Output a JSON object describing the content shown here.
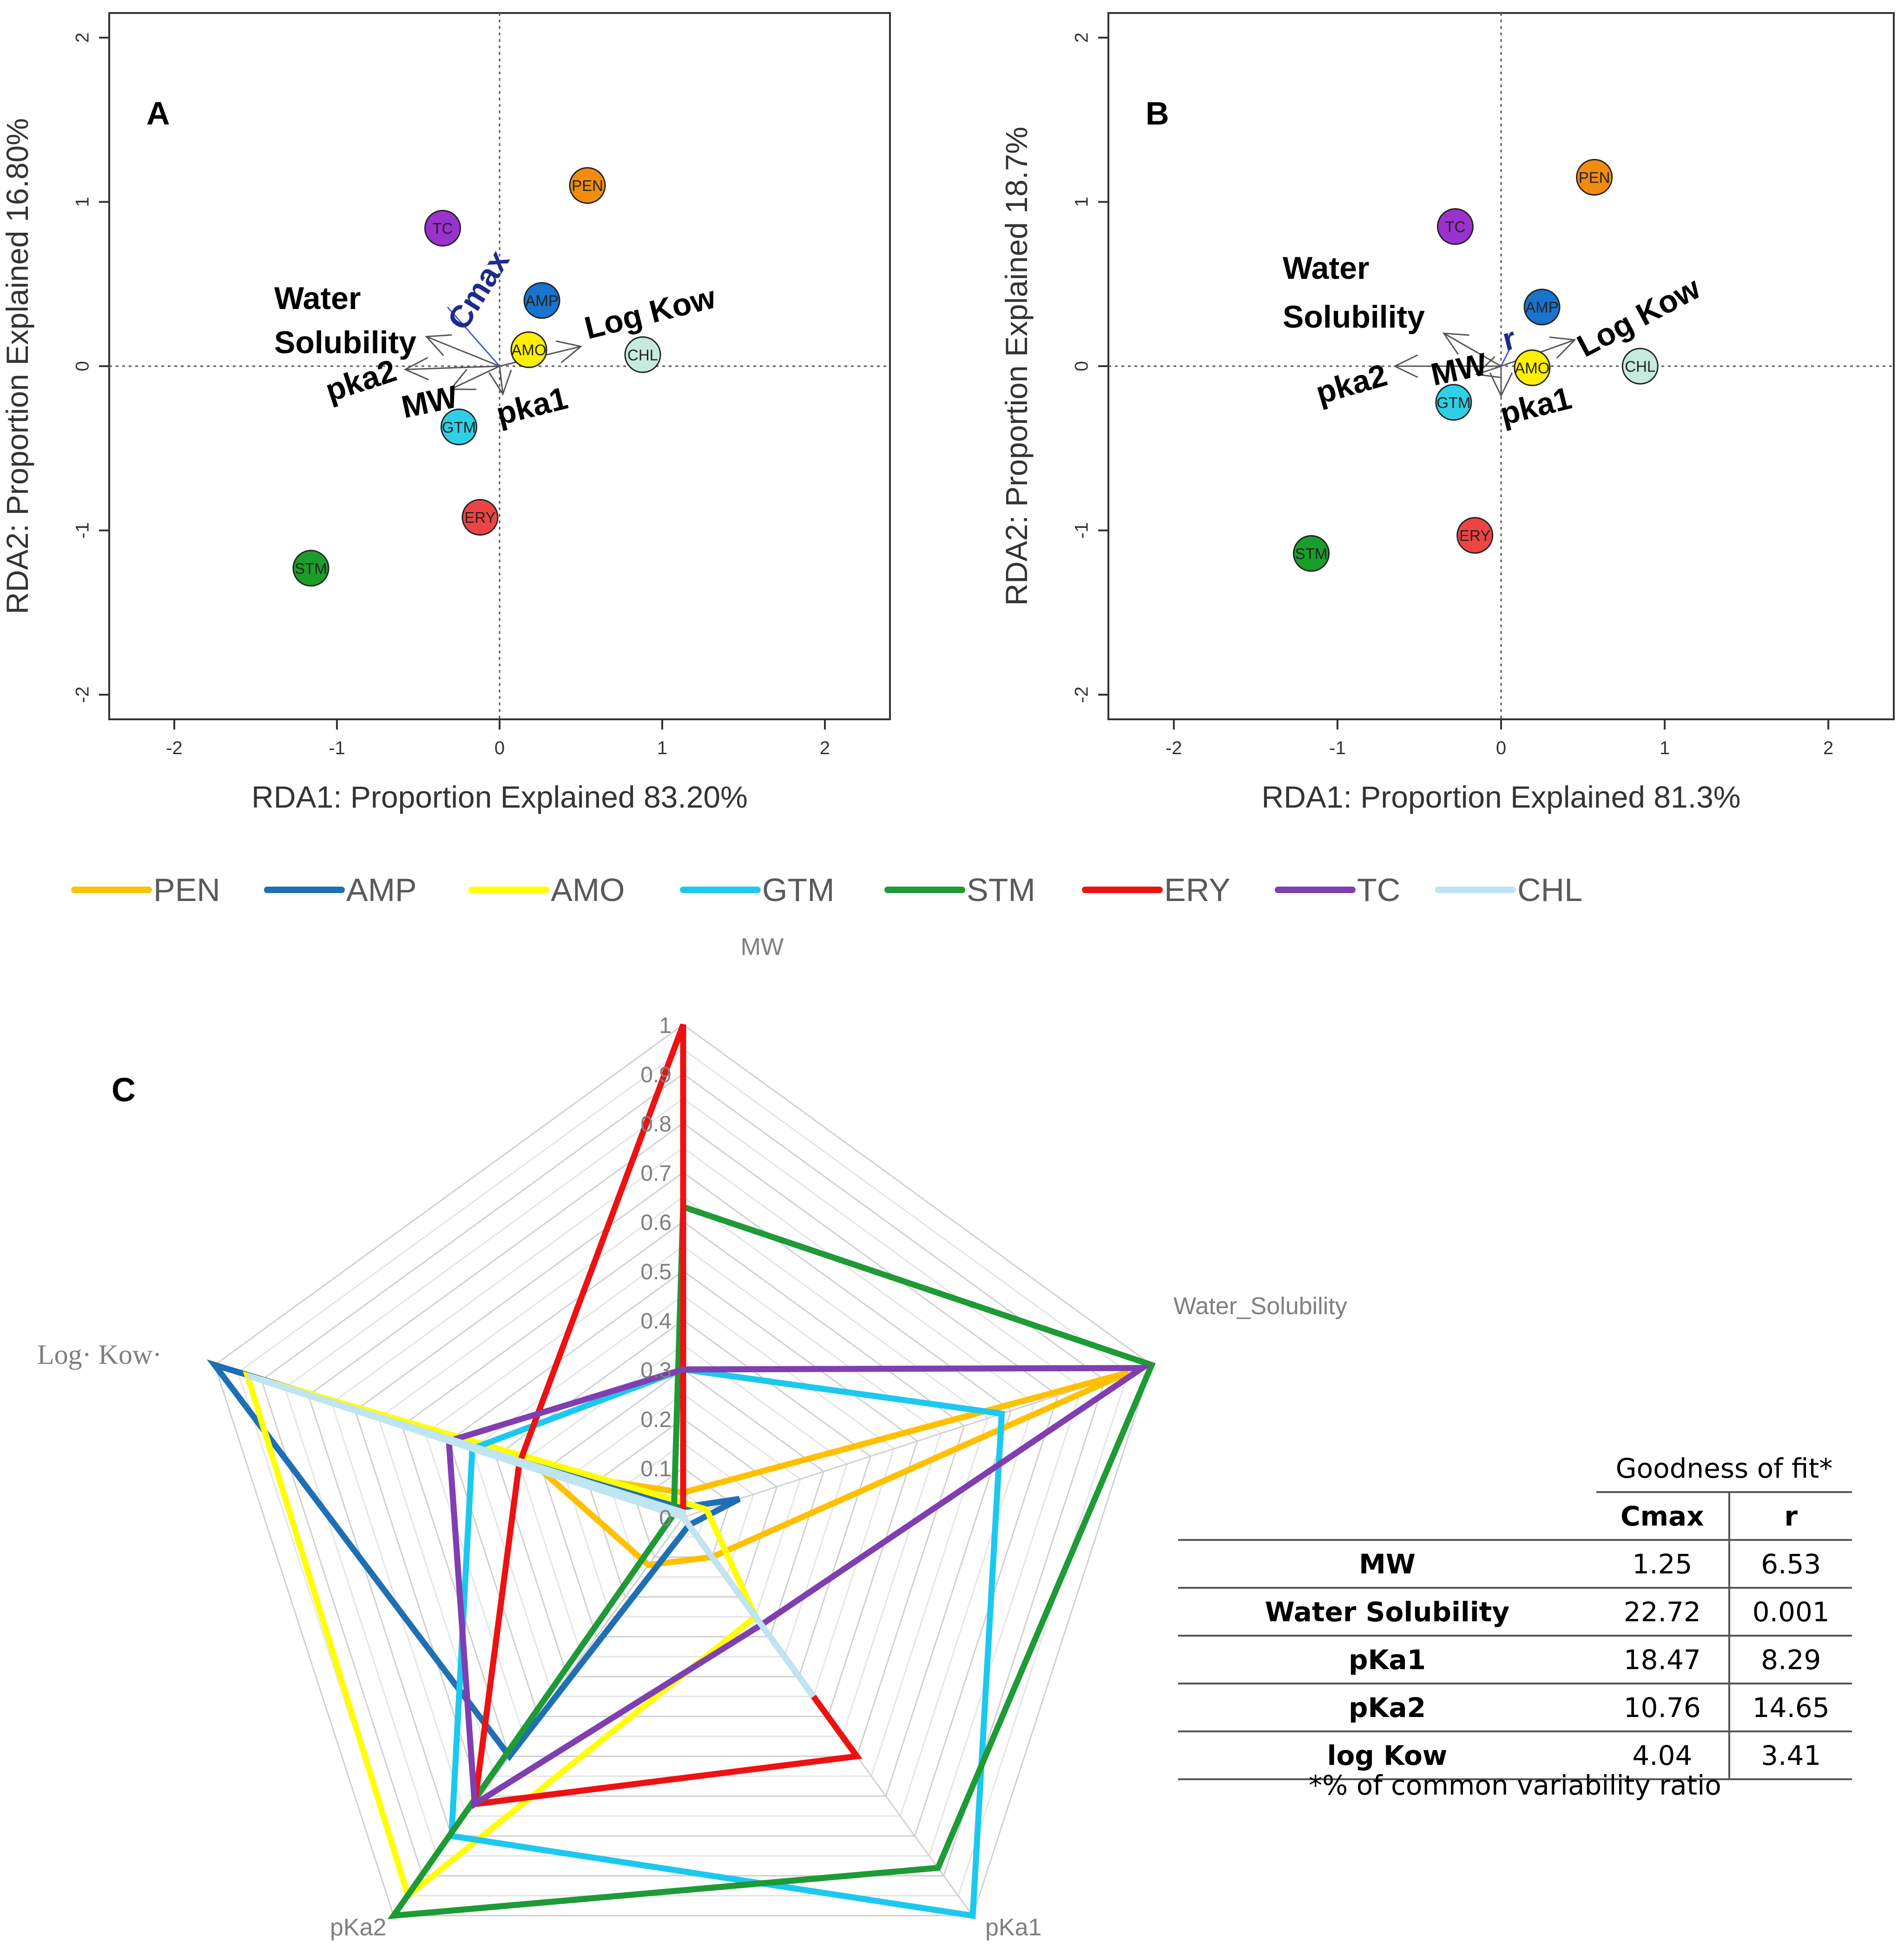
{
  "chart_data": [
    {
      "type": "scatter",
      "panel": "A",
      "xlabel": "RDA1: Proportion Explained 83.20%",
      "ylabel": "RDA2: Proportion Explained 16.80%",
      "xlim": [
        -2.4,
        2.4
      ],
      "ylim": [
        -2.15,
        2.15
      ],
      "xticks": [
        -2,
        -1,
        0,
        1,
        2
      ],
      "yticks": [
        -2,
        -1,
        0,
        1,
        2
      ],
      "tick_labels": [
        "-2",
        "-1",
        "0",
        "1",
        "2"
      ],
      "points": [
        {
          "label": "PEN",
          "x": 0.54,
          "y": 1.1,
          "color": "#F28C0F"
        },
        {
          "label": "TC",
          "x": -0.35,
          "y": 0.84,
          "color": "#9A32CD"
        },
        {
          "label": "AMP",
          "x": 0.26,
          "y": 0.4,
          "color": "#1874CD"
        },
        {
          "label": "AMO",
          "x": 0.18,
          "y": 0.1,
          "color": "#FFF000"
        },
        {
          "label": "CHL",
          "x": 0.88,
          "y": 0.07,
          "color": "#C7EADF"
        },
        {
          "label": "GTM",
          "x": -0.25,
          "y": -0.37,
          "color": "#2FD0E6"
        },
        {
          "label": "ERY",
          "x": -0.12,
          "y": -0.92,
          "color": "#EE4444"
        },
        {
          "label": "STM",
          "x": -1.16,
          "y": -1.23,
          "color": "#1A9E2A"
        }
      ],
      "vectors": [
        {
          "label": "Water Solubility",
          "line1": "Water",
          "line2": "Solubility",
          "x": -0.45,
          "y": 0.18
        },
        {
          "label": "pka2",
          "x": -0.58,
          "y": -0.02
        },
        {
          "label": "MW",
          "x": -0.3,
          "y": -0.14
        },
        {
          "label": "pka1",
          "x": 0.02,
          "y": -0.17
        },
        {
          "label": "Log Kow",
          "x": 0.5,
          "y": 0.12
        }
      ],
      "response": {
        "label": "Cmax",
        "x": -0.32,
        "y": 0.36,
        "color": "#1F2A8A"
      }
    },
    {
      "type": "scatter",
      "panel": "B",
      "xlabel": "RDA1: Proportion Explained 81.3%",
      "ylabel": "RDA2: Proportion Explained 18.7%",
      "xlim": [
        -2.4,
        2.4
      ],
      "ylim": [
        -2.15,
        2.15
      ],
      "xticks": [
        -2,
        -1,
        0,
        1,
        2
      ],
      "yticks": [
        -2,
        -1,
        0,
        1,
        2
      ],
      "tick_labels": [
        "-2",
        "-1",
        "0",
        "1",
        "2"
      ],
      "points": [
        {
          "label": "PEN",
          "x": 0.57,
          "y": 1.15,
          "color": "#F28C0F"
        },
        {
          "label": "TC",
          "x": -0.28,
          "y": 0.85,
          "color": "#9A32CD"
        },
        {
          "label": "AMP",
          "x": 0.25,
          "y": 0.36,
          "color": "#1874CD"
        },
        {
          "label": "AMO",
          "x": 0.19,
          "y": -0.01,
          "color": "#FFF000"
        },
        {
          "label": "CHL",
          "x": 0.85,
          "y": 0.0,
          "color": "#C7EADF"
        },
        {
          "label": "GTM",
          "x": -0.29,
          "y": -0.22,
          "color": "#2FD0E6"
        },
        {
          "label": "ERY",
          "x": -0.16,
          "y": -1.03,
          "color": "#EE4444"
        },
        {
          "label": "STM",
          "x": -1.16,
          "y": -1.14,
          "color": "#1A9E2A"
        }
      ],
      "vectors": [
        {
          "label": "Water Solubility",
          "line1": "Water",
          "line2": "Solubility",
          "x": -0.35,
          "y": 0.2
        },
        {
          "label": "pka2",
          "x": -0.65,
          "y": 0.0
        },
        {
          "label": "MW",
          "x": -0.15,
          "y": -0.05
        },
        {
          "label": "pka1",
          "x": 0.0,
          "y": -0.18
        },
        {
          "label": "Log Kow",
          "x": 0.45,
          "y": 0.16
        }
      ],
      "response": {
        "label": "r",
        "x": 0.05,
        "y": 0.1,
        "color": "#1F2A8A"
      }
    },
    {
      "type": "radar",
      "panel": "C",
      "axes": [
        "MW",
        "Water_Solubility",
        "pKa1",
        "pKa2",
        "Log· Kow·"
      ],
      "rlim": [
        0,
        1
      ],
      "ticks": [
        "0",
        "0.1",
        "0.2",
        "0.3",
        "0.4",
        "0.5",
        "0.6",
        "0.7",
        "0.8",
        "0.9",
        "1"
      ],
      "series": [
        {
          "name": "PEN",
          "color": "#FFC000",
          "values": [
            0.05,
            0.95,
            0.1,
            0.12,
            0.3
          ]
        },
        {
          "name": "AMP",
          "color": "#1F6FB4",
          "values": [
            0.02,
            0.12,
            0.02,
            0.6,
            1.0
          ]
        },
        {
          "name": "AMO",
          "color": "#FFFF00",
          "values": [
            0.03,
            0.05,
            0.25,
            0.95,
            0.93
          ]
        },
        {
          "name": "GTM",
          "color": "#1CC8EE",
          "values": [
            0.3,
            0.68,
            1.0,
            0.8,
            0.45
          ]
        },
        {
          "name": "STM",
          "color": "#1E9A36",
          "values": [
            0.63,
            1.0,
            0.88,
            1.0,
            0.02
          ]
        },
        {
          "name": "ERY",
          "color": "#EE1111",
          "values": [
            1.0,
            0.0,
            0.6,
            0.72,
            0.35
          ]
        },
        {
          "name": "TC",
          "color": "#7F3FB0",
          "values": [
            0.3,
            0.98,
            0.27,
            0.72,
            0.5
          ]
        },
        {
          "name": "CHL",
          "color": "#BFE4F2",
          "values": [
            0.01,
            0.0,
            0.45,
            0.0,
            0.93
          ]
        }
      ]
    }
  ],
  "panel_labels": {
    "a": "A",
    "b": "B",
    "c": "C"
  },
  "table": {
    "caption": "Goodness of fit*",
    "col1": "Cmax",
    "col2": "r",
    "rows": [
      {
        "label": "MW",
        "cmax": "1.25",
        "r": "6.53"
      },
      {
        "label": "Water Solubility",
        "cmax": "22.72",
        "r": "0.001"
      },
      {
        "label": "pKa1",
        "cmax": "18.47",
        "r": "8.29"
      },
      {
        "label": "pKa2",
        "cmax": "10.76",
        "r": "14.65"
      },
      {
        "label": "log Kow",
        "cmax": "4.04",
        "r": "3.41"
      }
    ],
    "footnote": "*% of common variability ratio"
  }
}
